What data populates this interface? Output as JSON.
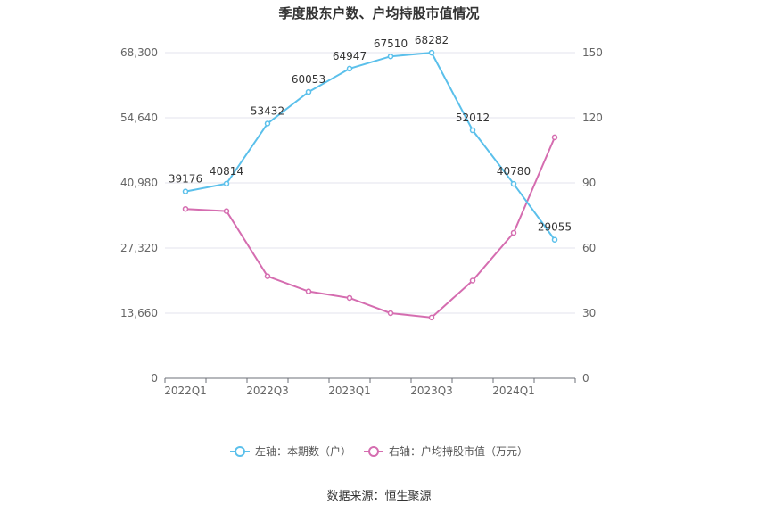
{
  "chart_data": {
    "type": "line",
    "title": "季度股东户数、户均持股市值情况",
    "categories": [
      "2022Q1",
      "2022Q2",
      "2022Q3",
      "2022Q4",
      "2023Q1",
      "2023Q2",
      "2023Q3",
      "2023Q4",
      "2024Q1",
      "2024Q2"
    ],
    "x_tick_labels": [
      "2022Q1",
      "2022Q3",
      "2023Q1",
      "2023Q3",
      "2024Q1"
    ],
    "left_axis": {
      "ticks": [
        "0",
        "13,660",
        "27,320",
        "40,980",
        "54,640",
        "68,300"
      ],
      "ylim": [
        0,
        68300
      ]
    },
    "right_axis": {
      "ticks": [
        "0",
        "30",
        "60",
        "90",
        "120",
        "150"
      ],
      "ylim": [
        0,
        150
      ]
    },
    "series": [
      {
        "name": "左轴：本期数（户）",
        "axis": "left",
        "color": "#5bc0eb",
        "values": [
          39176,
          40814,
          53432,
          60053,
          64947,
          67510,
          68282,
          52012,
          40780,
          29055
        ],
        "labels": [
          "39176",
          "40814",
          "53432",
          "60053",
          "64947",
          "67510",
          "68282",
          "52012",
          "40780",
          "29055"
        ]
      },
      {
        "name": "右轴：户均持股市值（万元）",
        "axis": "right",
        "color": "#d56db0",
        "values": [
          78,
          77,
          47,
          40,
          37,
          30,
          28,
          45,
          67,
          111
        ]
      }
    ],
    "grid": true,
    "legend_position": "bottom"
  },
  "footer": {
    "source": "数据来源：恒生聚源"
  }
}
